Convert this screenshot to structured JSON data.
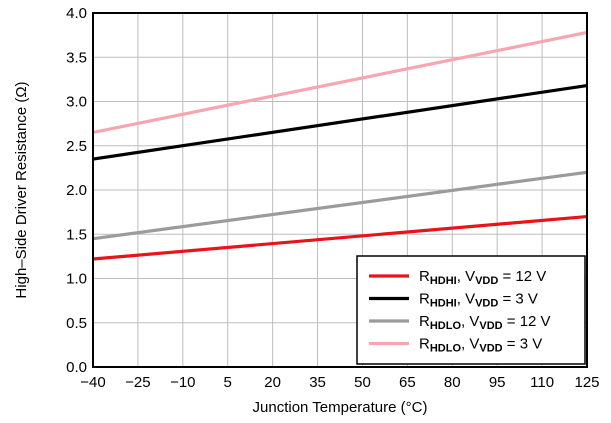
{
  "chart_data": {
    "type": "line",
    "xlabel": "Junction Temperature (°C)",
    "ylabel": "High–Side Driver Resistance (Ω)",
    "xlim": [
      -40,
      125
    ],
    "ylim": [
      0,
      4
    ],
    "x_ticks": [
      -40,
      -25,
      -10,
      5,
      20,
      35,
      50,
      65,
      80,
      95,
      110,
      125
    ],
    "x_tick_labels": [
      "−40",
      "−25",
      "−10",
      "5",
      "20",
      "35",
      "50",
      "65",
      "80",
      "95",
      "110",
      "125"
    ],
    "y_ticks": [
      0,
      0.5,
      1,
      1.5,
      2,
      2.5,
      3,
      3.5,
      4
    ],
    "y_tick_labels": [
      "0.0",
      "0.5",
      "1.0",
      "1.5",
      "2.0",
      "2.5",
      "3.0",
      "3.5",
      "4.0"
    ],
    "grid": true,
    "legend_position": "bottom-right",
    "series": [
      {
        "key": "hdhi_12",
        "label_main": "R",
        "label_sub": "HDHI",
        "label_mid": ", V",
        "label_sub2": "VDD",
        "label_tail": " = 12 V",
        "color": "#e8141a",
        "x": [
          -40,
          125
        ],
        "y": [
          1.22,
          1.7
        ]
      },
      {
        "key": "hdhi_3",
        "label_main": "R",
        "label_sub": "HDHI",
        "label_mid": ", V",
        "label_sub2": "VDD",
        "label_tail": " = 3 V",
        "color": "#000000",
        "x": [
          -40,
          125
        ],
        "y": [
          2.35,
          3.18
        ]
      },
      {
        "key": "hdlo_12",
        "label_main": "R",
        "label_sub": "HDLO",
        "label_mid": ", V",
        "label_sub2": "VDD",
        "label_tail": " = 12 V",
        "color": "#9b9b9b",
        "x": [
          -40,
          125
        ],
        "y": [
          1.45,
          2.2
        ]
      },
      {
        "key": "hdlo_3",
        "label_main": "R",
        "label_sub": "HDLO",
        "label_mid": ", V",
        "label_sub2": "VDD",
        "label_tail": " = 3 V",
        "color": "#f6a5b1",
        "x": [
          -40,
          125
        ],
        "y": [
          2.65,
          3.78
        ]
      }
    ]
  }
}
